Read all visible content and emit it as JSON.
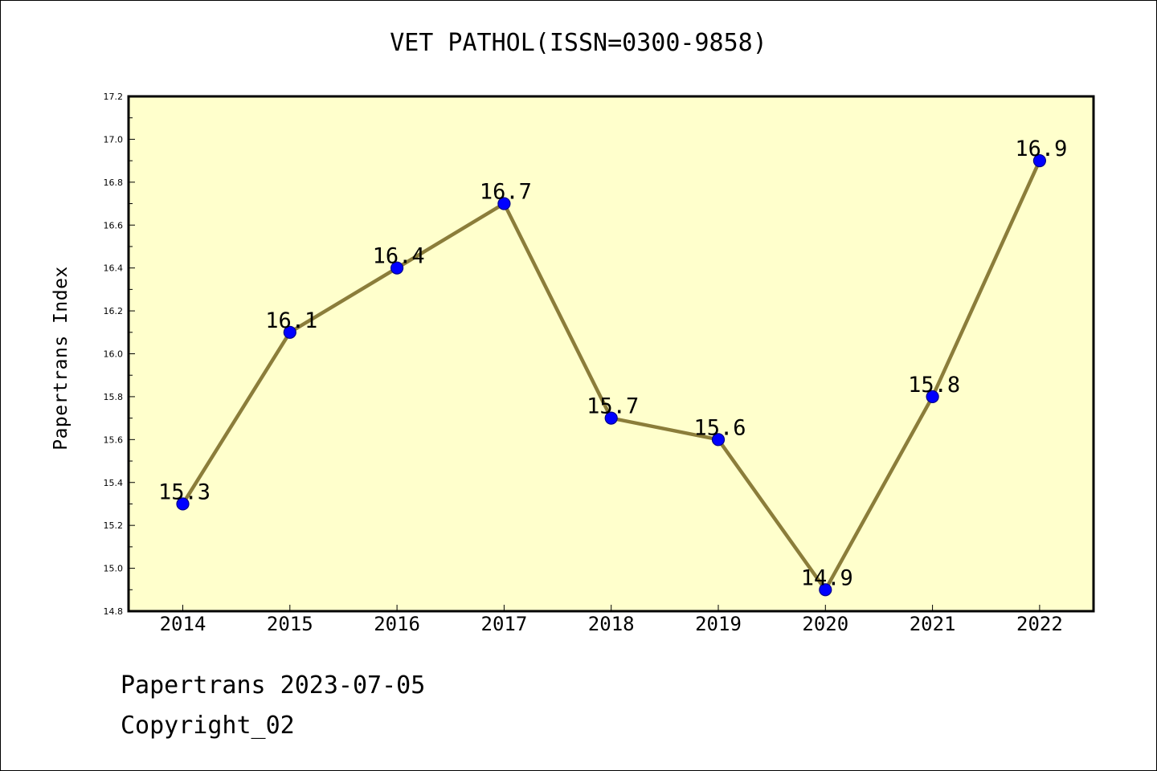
{
  "chart_data": {
    "type": "line",
    "title": "VET PATHOL(ISSN=0300-9858)",
    "xlabel": "",
    "ylabel": "Papertrans Index",
    "categories": [
      "2014",
      "2015",
      "2016",
      "2017",
      "2018",
      "2019",
      "2020",
      "2021",
      "2022"
    ],
    "values": [
      15.3,
      16.1,
      16.4,
      16.7,
      15.7,
      15.6,
      14.9,
      15.8,
      16.9
    ],
    "data_labels": [
      "15.3",
      "16.1",
      "16.4",
      "16.7",
      "15.7",
      "15.6",
      "14.9",
      "15.8",
      "16.9"
    ],
    "ylim": [
      14.8,
      17.2
    ],
    "yticks": [
      "14.8",
      "15.0",
      "15.2",
      "15.4",
      "15.6",
      "15.8",
      "16.0",
      "16.2",
      "16.4",
      "16.6",
      "16.8",
      "17.0",
      "17.2"
    ],
    "grid": false,
    "legend": "none"
  },
  "colors": {
    "plot_background": "#ffffcc",
    "line": "#8b7d3a",
    "marker_fill": "#0000ff",
    "marker_edge": "#00008b",
    "axes": "#000000"
  },
  "footer": {
    "date_text": "Papertrans 2023-07-05",
    "copyright_text": "Copyright_02"
  }
}
